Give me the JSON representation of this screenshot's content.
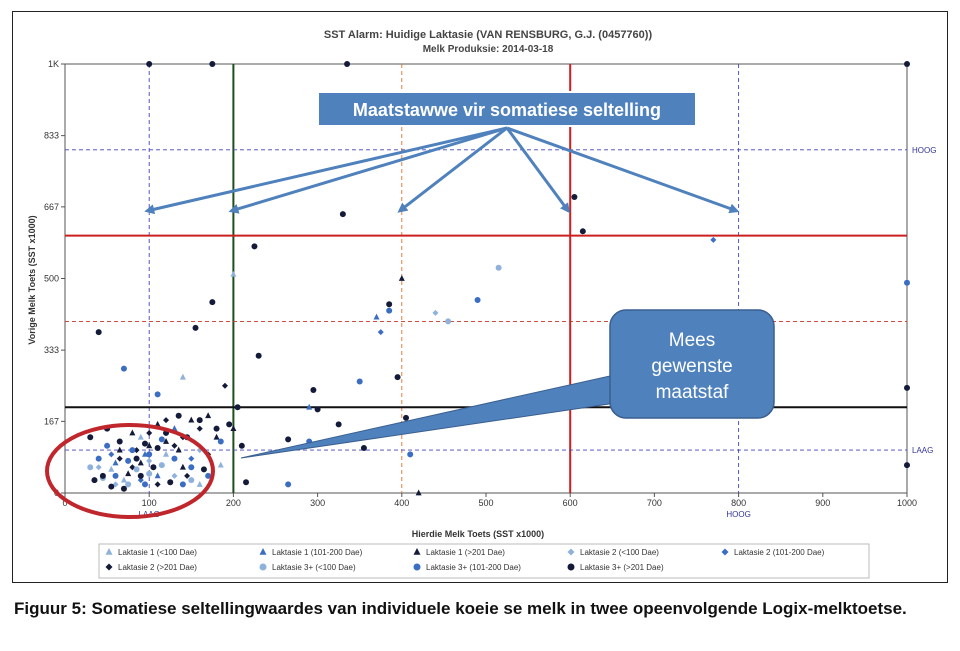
{
  "chart_data": {
    "type": "scatter",
    "title": "SST Alarm: Huidige Laktasie (VAN RENSBURG, G.J. (0457760))",
    "subtitle": "Melk Produksie: 2014-03-18",
    "xlabel": "Hierdie Melk Toets (SST x1000)",
    "ylabel": "Vorige Melk Toets (SST x1000)",
    "xlim": [
      0,
      1000
    ],
    "ylim": [
      0,
      1000
    ],
    "x_ticks": [
      "0",
      "100",
      "200",
      "300",
      "400",
      "500",
      "600",
      "700",
      "800",
      "900",
      "1000"
    ],
    "y_ticks": [
      {
        "value": 0,
        "label": "0"
      },
      {
        "value": 167,
        "label": "167"
      },
      {
        "value": 333,
        "label": "333"
      },
      {
        "value": 500,
        "label": "500"
      },
      {
        "value": 667,
        "label": "667"
      },
      {
        "value": 833,
        "label": "833"
      },
      {
        "value": 1000,
        "label": "1K"
      }
    ],
    "right_labels": [
      {
        "value": 800,
        "label": "HOOG"
      },
      {
        "value": 100,
        "label": "LAAG"
      }
    ],
    "bottom_labels": [
      {
        "value": 800,
        "label": "HOOG"
      },
      {
        "value": 100,
        "label": "LAAG"
      }
    ],
    "reference_lines": [
      {
        "axis": "x",
        "value": 100,
        "color": "#4444bb",
        "style": "dashed"
      },
      {
        "axis": "x",
        "value": 200,
        "color": "#1e4d1e",
        "style": "solid"
      },
      {
        "axis": "x",
        "value": 400,
        "color": "#e07030",
        "style": "dashed"
      },
      {
        "axis": "x",
        "value": 600,
        "color": "#cc1f1f",
        "style": "solid"
      },
      {
        "axis": "x",
        "value": 800,
        "color": "#4444bb",
        "style": "dashed"
      },
      {
        "axis": "y",
        "value": 100,
        "color": "#4444bb",
        "style": "dashed"
      },
      {
        "axis": "y",
        "value": 200,
        "color": "#111111",
        "style": "solid"
      },
      {
        "axis": "y",
        "value": 400,
        "color": "#cc3322",
        "style": "dashed"
      },
      {
        "axis": "y",
        "value": 600,
        "color": "#cc1f1f",
        "style": "solid"
      },
      {
        "axis": "y",
        "value": 800,
        "color": "#4444bb",
        "style": "dashed"
      }
    ],
    "legend": {
      "placement": "bottom",
      "items": [
        {
          "label": "Laktasie 1 (<100 Dae)",
          "marker": "triangle",
          "color": "#8fb2dc"
        },
        {
          "label": "Laktasie 1 (101-200 Dae)",
          "marker": "triangle",
          "color": "#3b6ec2"
        },
        {
          "label": "Laktasie 1 (>201 Dae)",
          "marker": "triangle",
          "color": "#141a3a"
        },
        {
          "label": "Laktasie 2 (<100 Dae)",
          "marker": "diamond",
          "color": "#8fb2dc"
        },
        {
          "label": "Laktasie 2 (101-200 Dae)",
          "marker": "diamond",
          "color": "#3b6ec2"
        },
        {
          "label": "Laktasie 2 (>201 Dae)",
          "marker": "diamond",
          "color": "#141a3a"
        },
        {
          "label": "Laktasie 3+ (<100 Dae)",
          "marker": "circle",
          "color": "#8fb2dc"
        },
        {
          "label": "Laktasie 3+ (101-200 Dae)",
          "marker": "circle",
          "color": "#3b6ec2"
        },
        {
          "label": "Laktasie 3+ (>201 Dae)",
          "marker": "circle",
          "color": "#141a3a"
        }
      ]
    },
    "series": [
      {
        "name": "Laktasie 1 (<100 Dae)",
        "marker": "triangle",
        "color": "#8fb2dc",
        "points": [
          [
            140,
            270
          ],
          [
            200,
            510
          ],
          [
            55,
            55
          ],
          [
            90,
            130
          ],
          [
            120,
            90
          ],
          [
            70,
            30
          ],
          [
            160,
            20
          ],
          [
            185,
            65
          ]
        ]
      },
      {
        "name": "Laktasie 1 (101-200 Dae)",
        "marker": "triangle",
        "color": "#3b6ec2",
        "points": [
          [
            370,
            410
          ],
          [
            290,
            200
          ],
          [
            95,
            90
          ],
          [
            130,
            150
          ],
          [
            60,
            70
          ],
          [
            110,
            40
          ]
        ]
      },
      {
        "name": "Laktasie 1 (>201 Dae)",
        "marker": "triangle",
        "color": "#141a3a",
        "points": [
          [
            400,
            500
          ],
          [
            420,
            0
          ],
          [
            150,
            170
          ],
          [
            180,
            130
          ],
          [
            80,
            140
          ],
          [
            100,
            110
          ],
          [
            140,
            60
          ],
          [
            65,
            100
          ],
          [
            170,
            180
          ],
          [
            120,
            120
          ],
          [
            200,
            150
          ],
          [
            75,
            45
          ],
          [
            110,
            160
          ],
          [
            135,
            100
          ],
          [
            90,
            70
          ]
        ]
      },
      {
        "name": "Laktasie 2 (<100 Dae)",
        "marker": "diamond",
        "color": "#8fb2dc",
        "points": [
          [
            440,
            420
          ],
          [
            40,
            60
          ],
          [
            130,
            40
          ],
          [
            100,
            75
          ],
          [
            160,
            100
          ],
          [
            60,
            20
          ]
        ]
      },
      {
        "name": "Laktasie 2 (101-200 Dae)",
        "marker": "diamond",
        "color": "#3b6ec2",
        "points": [
          [
            770,
            590
          ],
          [
            375,
            375
          ],
          [
            90,
            30
          ],
          [
            150,
            80
          ],
          [
            55,
            90
          ]
        ]
      },
      {
        "name": "Laktasie 2 (>201 Dae)",
        "marker": "diamond",
        "color": "#141a3a",
        "points": [
          [
            190,
            250
          ],
          [
            120,
            170
          ],
          [
            80,
            60
          ],
          [
            100,
            140
          ],
          [
            140,
            130
          ],
          [
            160,
            150
          ],
          [
            65,
            80
          ],
          [
            110,
            20
          ],
          [
            130,
            110
          ],
          [
            85,
            100
          ],
          [
            145,
            40
          ],
          [
            170,
            90
          ]
        ]
      },
      {
        "name": "Laktasie 3+ (<100 Dae)",
        "marker": "circle",
        "color": "#8fb2dc",
        "points": [
          [
            515,
            525
          ],
          [
            455,
            400
          ],
          [
            30,
            60
          ],
          [
            45,
            35
          ],
          [
            85,
            55
          ],
          [
            115,
            65
          ],
          [
            75,
            20
          ],
          [
            150,
            30
          ],
          [
            100,
            45
          ]
        ]
      },
      {
        "name": "Laktasie 3+ (101-200 Dae)",
        "marker": "circle",
        "color": "#3b6ec2",
        "points": [
          [
            1000,
            490
          ],
          [
            490,
            450
          ],
          [
            350,
            260
          ],
          [
            385,
            425
          ],
          [
            70,
            290
          ],
          [
            110,
            230
          ],
          [
            265,
            20
          ],
          [
            410,
            90
          ],
          [
            290,
            120
          ],
          [
            40,
            80
          ],
          [
            60,
            40
          ],
          [
            80,
            100
          ],
          [
            100,
            90
          ],
          [
            130,
            80
          ],
          [
            150,
            60
          ],
          [
            170,
            40
          ],
          [
            115,
            125
          ],
          [
            95,
            20
          ],
          [
            140,
            20
          ],
          [
            50,
            110
          ],
          [
            185,
            120
          ],
          [
            75,
            75
          ]
        ]
      },
      {
        "name": "Laktasie 3+ (>201 Dae)",
        "marker": "circle",
        "color": "#141a3a",
        "points": [
          [
            100,
            1000
          ],
          [
            175,
            1000
          ],
          [
            335,
            1000
          ],
          [
            1000,
            1000
          ],
          [
            605,
            690
          ],
          [
            330,
            650
          ],
          [
            615,
            610
          ],
          [
            225,
            575
          ],
          [
            175,
            445
          ],
          [
            385,
            440
          ],
          [
            155,
            385
          ],
          [
            40,
            375
          ],
          [
            230,
            320
          ],
          [
            395,
            270
          ],
          [
            295,
            240
          ],
          [
            405,
            175
          ],
          [
            205,
            200
          ],
          [
            1000,
            245
          ],
          [
            1000,
            65
          ],
          [
            265,
            125
          ],
          [
            300,
            195
          ],
          [
            325,
            160
          ],
          [
            215,
            25
          ],
          [
            355,
            105
          ],
          [
            30,
            130
          ],
          [
            50,
            150
          ],
          [
            65,
            120
          ],
          [
            85,
            80
          ],
          [
            105,
            60
          ],
          [
            120,
            140
          ],
          [
            135,
            180
          ],
          [
            160,
            170
          ],
          [
            180,
            150
          ],
          [
            195,
            160
          ],
          [
            210,
            110
          ],
          [
            45,
            40
          ],
          [
            70,
            10
          ],
          [
            95,
            115
          ],
          [
            125,
            25
          ],
          [
            145,
            130
          ],
          [
            165,
            55
          ],
          [
            110,
            105
          ],
          [
            55,
            15
          ],
          [
            35,
            30
          ],
          [
            90,
            40
          ]
        ]
      }
    ],
    "callouts": {
      "top": "Maatstawwe vir somatiese seltelling",
      "box_lines": [
        "Mees",
        "gewenste",
        "maatstaf"
      ]
    }
  },
  "caption": {
    "figure": "Figuur 5",
    "text": ": Somatiese seltellingwaardes van individuele koeie se melk in twee opeenvolgende Logix-melktoetse."
  },
  "colors": {
    "callout_fill": "#4f81bd",
    "callout_border": "#3a5f8f",
    "ellipse": "#c0272d",
    "arrow": "#4f81bd"
  }
}
